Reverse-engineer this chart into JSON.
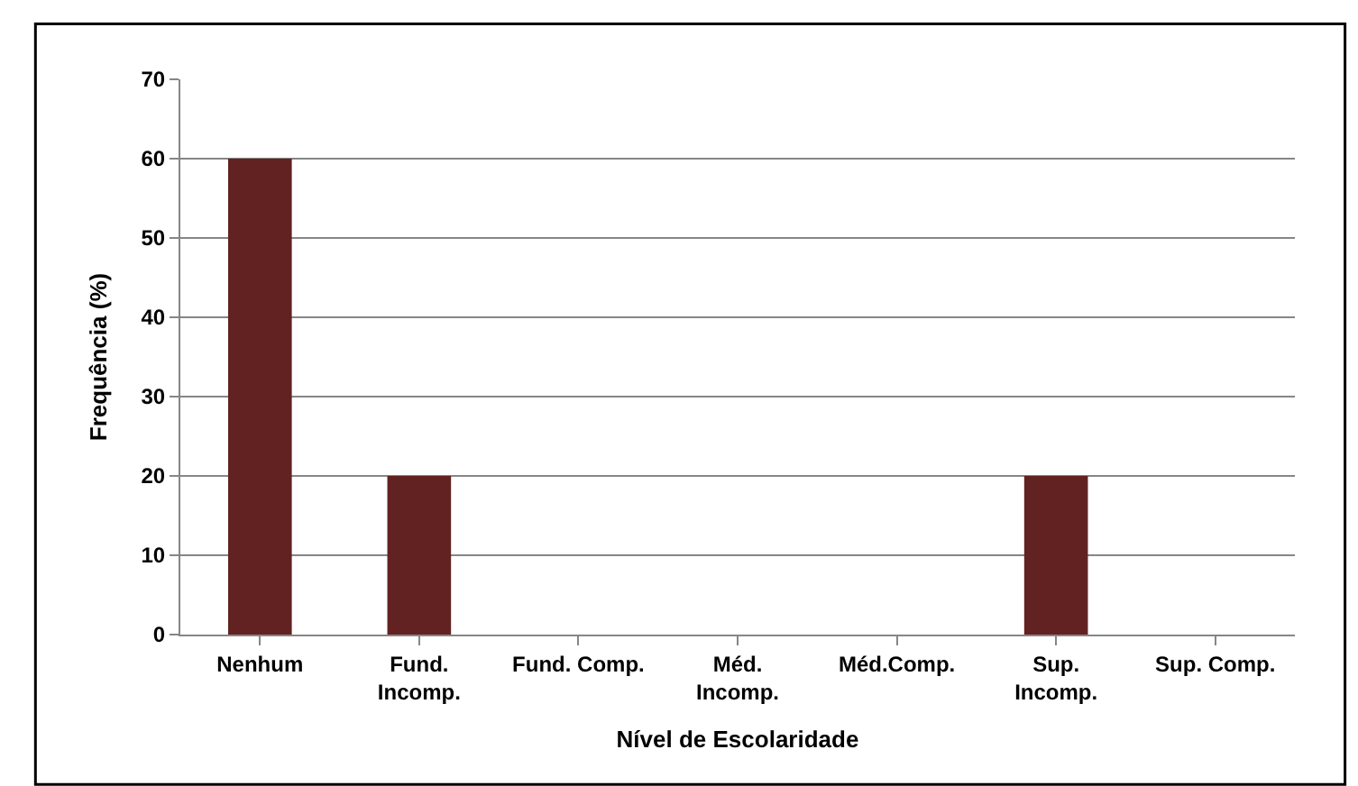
{
  "chart_data": {
    "type": "bar",
    "xlabel": "Nível de Escolaridade",
    "ylabel": "Frequência (%)",
    "categories": [
      "Nenhum",
      "Fund. Incomp.",
      "Fund. Comp.",
      "Méd. Incomp.",
      "Méd.Comp.",
      "Sup. Incomp.",
      "Sup. Comp."
    ],
    "values": [
      60,
      20,
      0,
      0,
      0,
      20,
      0
    ],
    "color": "#622222",
    "ylim": [
      0,
      70
    ],
    "yticks": [
      0,
      10,
      20,
      30,
      40,
      50,
      60,
      70
    ],
    "grid": "y",
    "legend": false
  }
}
